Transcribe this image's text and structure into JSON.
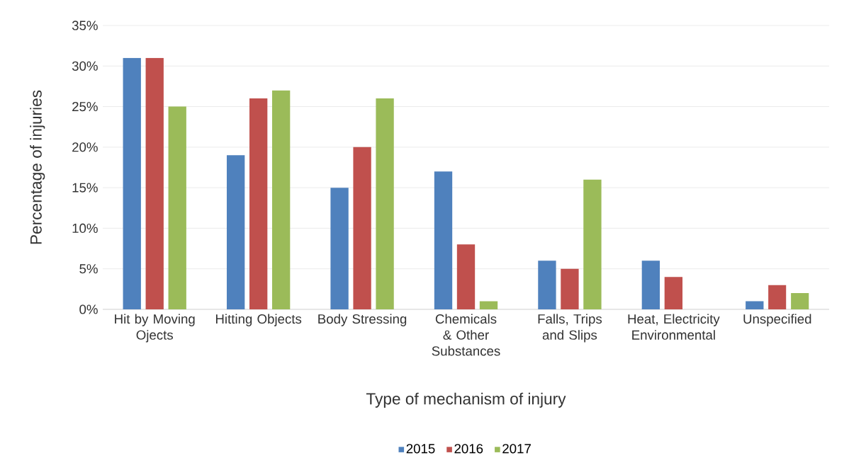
{
  "chart_data": {
    "type": "bar",
    "categories": [
      "Hit by Moving Ojects",
      "Hitting Objects",
      "Body Stressing",
      "Chemicals & Other Substances",
      "Falls, Trips and Slips",
      "Heat, Electricity Environmental",
      "Unspecified"
    ],
    "series": [
      {
        "name": "2015",
        "color": "#4f81bd",
        "values": [
          31,
          19,
          15,
          17,
          6,
          6,
          1
        ]
      },
      {
        "name": "2016",
        "color": "#c0504d",
        "values": [
          31,
          26,
          20,
          8,
          5,
          4,
          3
        ]
      },
      {
        "name": "2017",
        "color": "#9bbb59",
        "values": [
          25,
          27,
          26,
          1,
          16,
          0,
          2
        ]
      }
    ],
    "xlabel": "Type of mechanism of injury",
    "ylabel": "Percentage of injuries",
    "ylim": [
      0,
      35
    ],
    "yticks": [
      {
        "value": 0,
        "label": "0%"
      },
      {
        "value": 5,
        "label": "5%"
      },
      {
        "value": 10,
        "label": "10%"
      },
      {
        "value": 15,
        "label": "15%"
      },
      {
        "value": 20,
        "label": "20%"
      },
      {
        "value": 25,
        "label": "25%"
      },
      {
        "value": 30,
        "label": "30%"
      },
      {
        "value": 35,
        "label": "35%"
      }
    ],
    "grid": "y",
    "legend": "bottom"
  }
}
